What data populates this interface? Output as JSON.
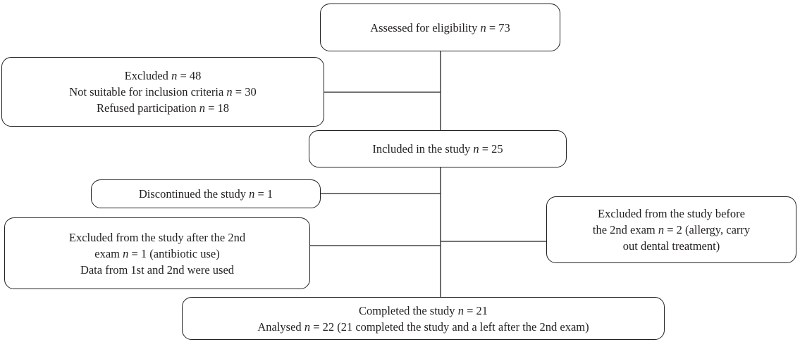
{
  "diagram": {
    "nodes": [
      {
        "id": "assessed",
        "lines": [
          {
            "pre": "Assessed for eligibility ",
            "n": "n",
            "post": " = 73"
          }
        ]
      },
      {
        "id": "excluded",
        "lines": [
          {
            "pre": "Excluded ",
            "n": "n",
            "post": " = 48"
          },
          {
            "pre": "Not suitable for inclusion criteria ",
            "n": "n",
            "post": " = 30"
          },
          {
            "pre": "Refused participation ",
            "n": "n",
            "post": " = 18"
          }
        ]
      },
      {
        "id": "included",
        "lines": [
          {
            "pre": "Included in the study ",
            "n": "n",
            "post": " = 25"
          }
        ]
      },
      {
        "id": "discontinued",
        "lines": [
          {
            "pre": "Discontinued the study ",
            "n": "n",
            "post": " = 1"
          }
        ]
      },
      {
        "id": "excluded-after-2nd",
        "lines": [
          {
            "pre": "Excluded from the study after the 2nd",
            "n": "",
            "post": ""
          },
          {
            "pre": "exam ",
            "n": "n",
            "post": " = 1 (antibiotic use)"
          },
          {
            "pre": "Data from 1st and 2nd were used",
            "n": "",
            "post": ""
          }
        ]
      },
      {
        "id": "excluded-before-2nd",
        "lines": [
          {
            "pre": "Excluded from the study before",
            "n": "",
            "post": ""
          },
          {
            "pre": "the 2nd exam ",
            "n": "n",
            "post": " = 2 (allergy, carry"
          },
          {
            "pre": "out dental treatment)",
            "n": "",
            "post": ""
          }
        ]
      },
      {
        "id": "completed",
        "lines": [
          {
            "pre": "Completed the study ",
            "n": "n",
            "post": " = 21"
          },
          {
            "pre": "Analysed ",
            "n": "n",
            "post": " = 22 (21 completed the study and a left after the 2nd exam)"
          }
        ]
      }
    ],
    "edges": [
      {
        "from": "assessed",
        "to": "included"
      },
      {
        "from": "assessed",
        "to": "excluded"
      },
      {
        "from": "included",
        "to": "completed"
      },
      {
        "from": "included",
        "to": "discontinued"
      },
      {
        "from": "included",
        "to": "excluded-after-2nd"
      },
      {
        "from": "included",
        "to": "excluded-before-2nd"
      }
    ]
  }
}
